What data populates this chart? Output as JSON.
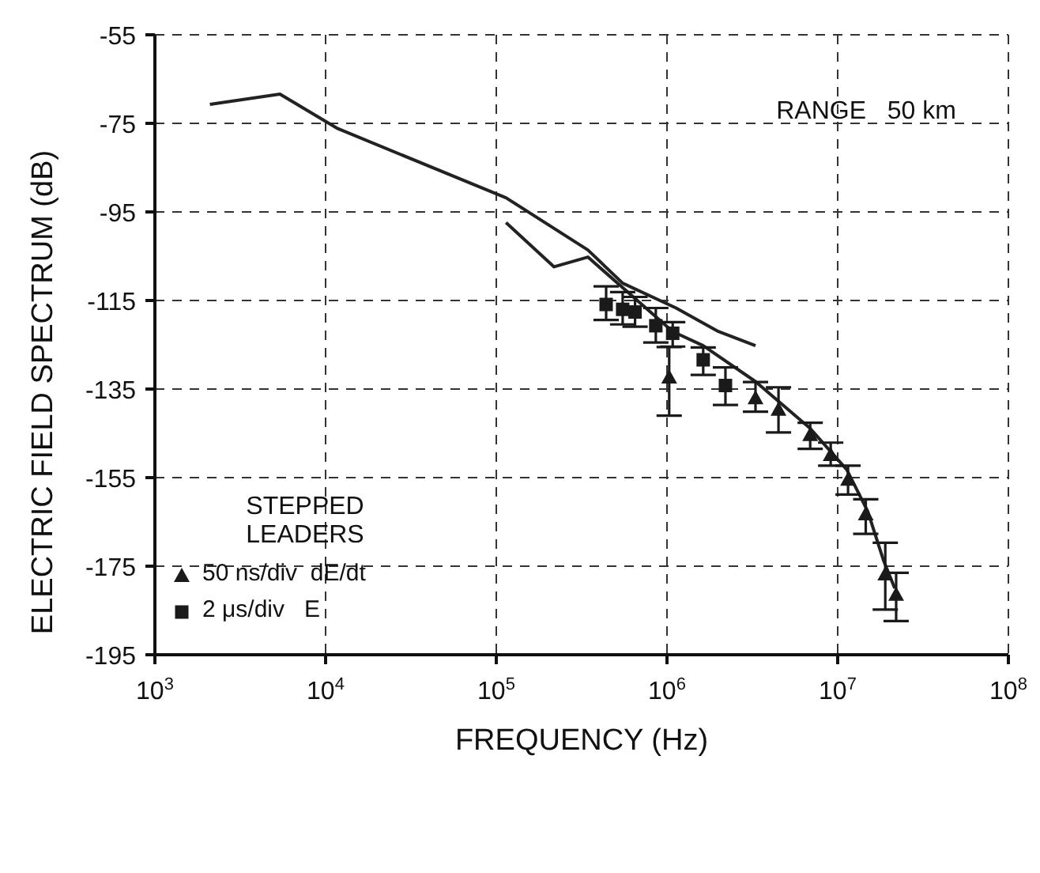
{
  "chart_data": {
    "type": "scatter",
    "xlabel": "FREQUENCY      (Hz)",
    "ylabel": "ELECTRIC  FIELD  SPECTRUM  (dB)",
    "annotations": [
      "RANGE   50 km",
      "STEPPED LEADERS"
    ],
    "log": "x",
    "grid": true,
    "legend": "bottom left",
    "xlim": [
      1000,
      100000000
    ],
    "xticks": [
      {
        "value": 1000,
        "label": "10$^{3}$"
      },
      {
        "value": 10000,
        "label": "10$^{4}$"
      },
      {
        "value": 100000,
        "label": "10$^{5}$"
      },
      {
        "value": 1000000,
        "label": "10$^{6}$"
      },
      {
        "value": 10000000,
        "label": "10$^{7}$"
      },
      {
        "value": 100000000,
        "label": "10$^{8}$"
      }
    ],
    "ylim": [
      -195,
      -55
    ],
    "yticks": [
      -195,
      -175,
      -155,
      -135,
      -115,
      -95,
      -75,
      -55
    ],
    "series": [
      {
        "type": "line",
        "color": "#222222",
        "marker": "none",
        "line_style": "solid",
        "x": [
          2100,
          5400,
          11800,
          114000,
          344000,
          550000,
          1130000,
          2000000,
          3300000
        ],
        "values": [
          -70.7,
          -68.4,
          -76.2,
          -91.8,
          -103.6,
          -111.1,
          -116.7,
          -122,
          -125.2
        ]
      },
      {
        "type": "line",
        "color": "#222222",
        "marker": "none",
        "line_style": "solid",
        "x": [
          114000,
          218000,
          344000,
          1080000,
          1630000,
          3300000,
          6900000,
          11300000,
          15000000,
          18600000,
          21600000
        ],
        "values": [
          -97.4,
          -107.4,
          -105.2,
          -122,
          -125.2,
          -133.3,
          -143.9,
          -153.2,
          -162.6,
          -173.8,
          -180
        ]
      },
      {
        "name": "50 ns/div  dE/dt",
        "color": "#1a1a1a",
        "marker": "triangle",
        "x": [
          1030000,
          3300000,
          4500000,
          6900000,
          9100000,
          11500000,
          14600000,
          19000000,
          22000000
        ],
        "values": [
          -132.3,
          -137,
          -139.6,
          -145.3,
          -149.8,
          -155.4,
          -163.2,
          -176.8,
          -181.4
        ],
        "errors": [
          [
            -141,
            -125.5
          ],
          [
            -140.1,
            -133.4
          ],
          [
            -144.8,
            -134.6
          ],
          [
            -148.5,
            -142.6
          ],
          [
            -152.3,
            -147.1
          ],
          [
            -158.8,
            -152.3
          ],
          [
            -167.7,
            -159.9
          ],
          [
            -184.8,
            -169.7
          ],
          [
            -187.4,
            -176.5
          ]
        ]
      },
      {
        "name": "2 μs/div   E",
        "color": "#1a1a1a",
        "marker": "square",
        "x": [
          440000,
          550000,
          650000,
          860000,
          1080000,
          1630000,
          2200000
        ],
        "values": [
          -115.9,
          -117,
          -117.6,
          -120.7,
          -122.4,
          -128.4,
          -134.2
        ],
        "errors": [
          [
            -119.4,
            -111.8
          ],
          [
            -120.4,
            -113.1
          ],
          [
            -120.9,
            -114.2
          ],
          [
            -124.5,
            -116.7
          ],
          [
            -125.4,
            -119.9
          ],
          [
            -131.8,
            -125.6
          ],
          [
            -138.6,
            -130.1
          ]
        ]
      }
    ]
  }
}
